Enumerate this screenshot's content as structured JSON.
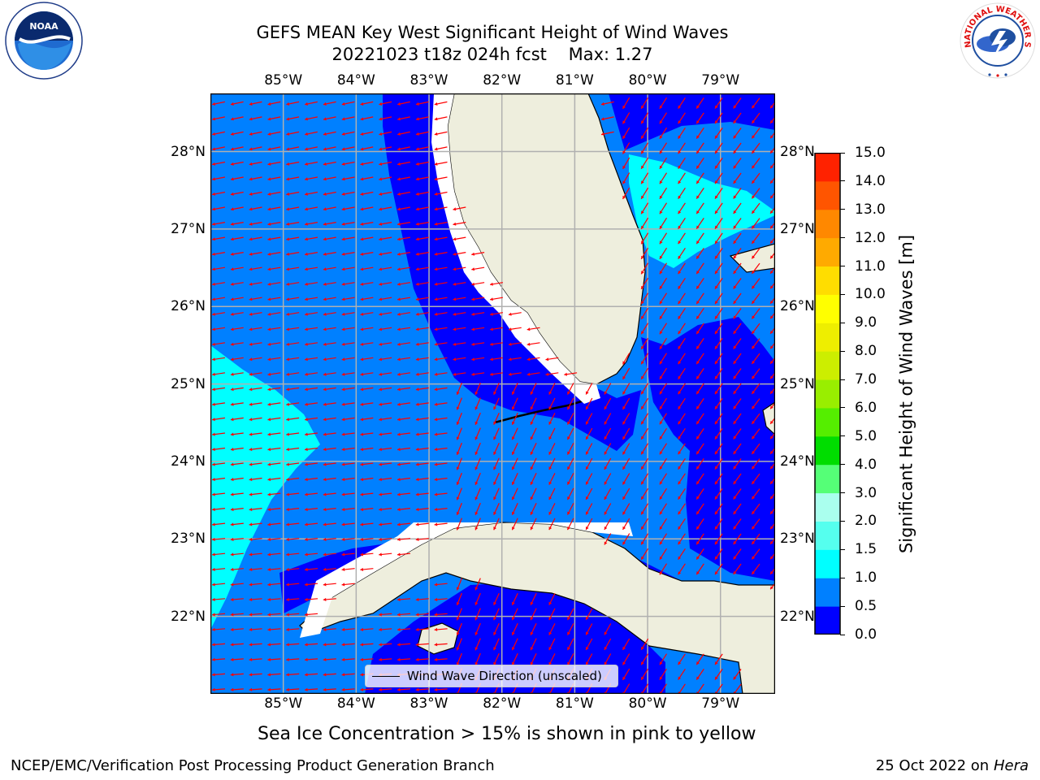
{
  "title": {
    "line1": "GEFS MEAN Key West Significant Height of Wind Waves",
    "line2": "20221023 t18z 024h fcst    Max: 1.27"
  },
  "map": {
    "extent": {
      "lon_min": -86.0,
      "lon_max": -78.25,
      "lat_min": 21.0,
      "lat_max": 28.75
    },
    "lon_ticks": [
      {
        "value": -85,
        "label": "85°W"
      },
      {
        "value": -84,
        "label": "84°W"
      },
      {
        "value": -83,
        "label": "83°W"
      },
      {
        "value": -82,
        "label": "82°W"
      },
      {
        "value": -81,
        "label": "81°W"
      },
      {
        "value": -80,
        "label": "80°W"
      },
      {
        "value": -79,
        "label": "79°W"
      }
    ],
    "lat_ticks": [
      {
        "value": 28,
        "label": "28°N"
      },
      {
        "value": 27,
        "label": "27°N"
      },
      {
        "value": 26,
        "label": "26°N"
      },
      {
        "value": 25,
        "label": "25°N"
      },
      {
        "value": 24,
        "label": "24°N"
      },
      {
        "value": 23,
        "label": "23°N"
      },
      {
        "value": 22,
        "label": "22°N"
      }
    ],
    "colors": {
      "land": "#eeeedd",
      "ocean_0_0_5": "#0000ff",
      "ocean_0_5_1_0": "#0080ff",
      "ocean_1_0_1_5": "#00ffff",
      "grid": "#b0b0b0",
      "vector": "#ff0000"
    },
    "vector_field_note_free": true
  },
  "legend": {
    "label": "Wind Wave Direction (unscaled)"
  },
  "colorbar": {
    "label": "Significant Height of Wind Waves [m]",
    "levels": [
      "0.0",
      "0.5",
      "1.0",
      "1.5",
      "2.0",
      "3.0",
      "4.0",
      "5.0",
      "6.0",
      "7.0",
      "8.0",
      "9.0",
      "10.0",
      "11.0",
      "12.0",
      "13.0",
      "14.0",
      "15.0"
    ],
    "colors": [
      "#0000ff",
      "#0080ff",
      "#00ffff",
      "#55ffee",
      "#aaffee",
      "#55ff77",
      "#00dd00",
      "#55ee00",
      "#99ee00",
      "#ccee00",
      "#eeee00",
      "#ffff00",
      "#ffdd00",
      "#ffaa00",
      "#ff8800",
      "#ff5500",
      "#ff2200"
    ]
  },
  "caption": "Sea Ice Concentration > 15% is shown in pink to yellow",
  "footer": {
    "left": "NCEP/EMC/Verification Post Processing Product Generation Branch",
    "right_prefix": "25 Oct 2022 on ",
    "right_host": "Hera"
  },
  "logos": {
    "noaa": "NOAA",
    "nws_ring": "NATIONAL WEATHER SERVICE"
  },
  "chart_data": {
    "type": "heatmap",
    "title": "GEFS MEAN Key West Significant Height of Wind Waves",
    "variable": "Significant Height of Wind Waves [m]",
    "run": "20221023 t18z",
    "forecast_hour": "024h",
    "max": 1.27,
    "levels_m": [
      0.0,
      0.5,
      1.0,
      1.5,
      2.0,
      3.0,
      4.0,
      5.0,
      6.0,
      7.0,
      8.0,
      9.0,
      10.0,
      11.0,
      12.0,
      13.0,
      14.0,
      15.0
    ],
    "xlim": [
      -86.0,
      -78.25
    ],
    "ylim": [
      21.0,
      28.75
    ],
    "grid": true
  }
}
